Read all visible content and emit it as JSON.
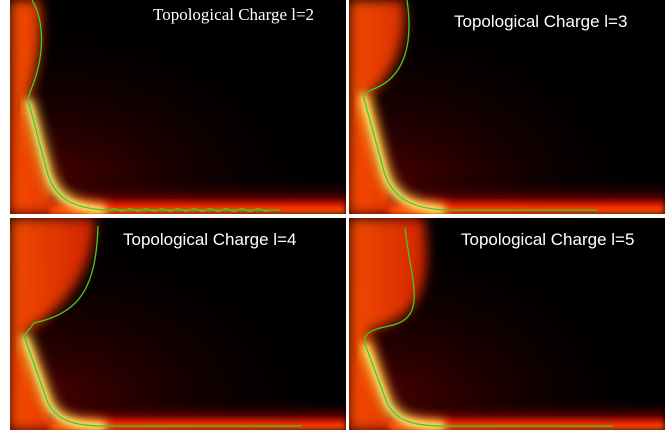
{
  "panels": [
    {
      "label": "Topological Charge l=2",
      "curve_color": "#3fcc2a"
    },
    {
      "label": "Topological Charge l=3",
      "curve_color": "#3fcc2a"
    },
    {
      "label": "Topological Charge l=4",
      "curve_color": "#3fcc2a"
    },
    {
      "label": "Topological Charge l=5",
      "curve_color": "#3fcc2a"
    }
  ],
  "colors": {
    "background": "#000000",
    "glow_hot": "#ffff66",
    "glow_mid": "#ff2a00",
    "glow_dark": "#3a0000"
  }
}
